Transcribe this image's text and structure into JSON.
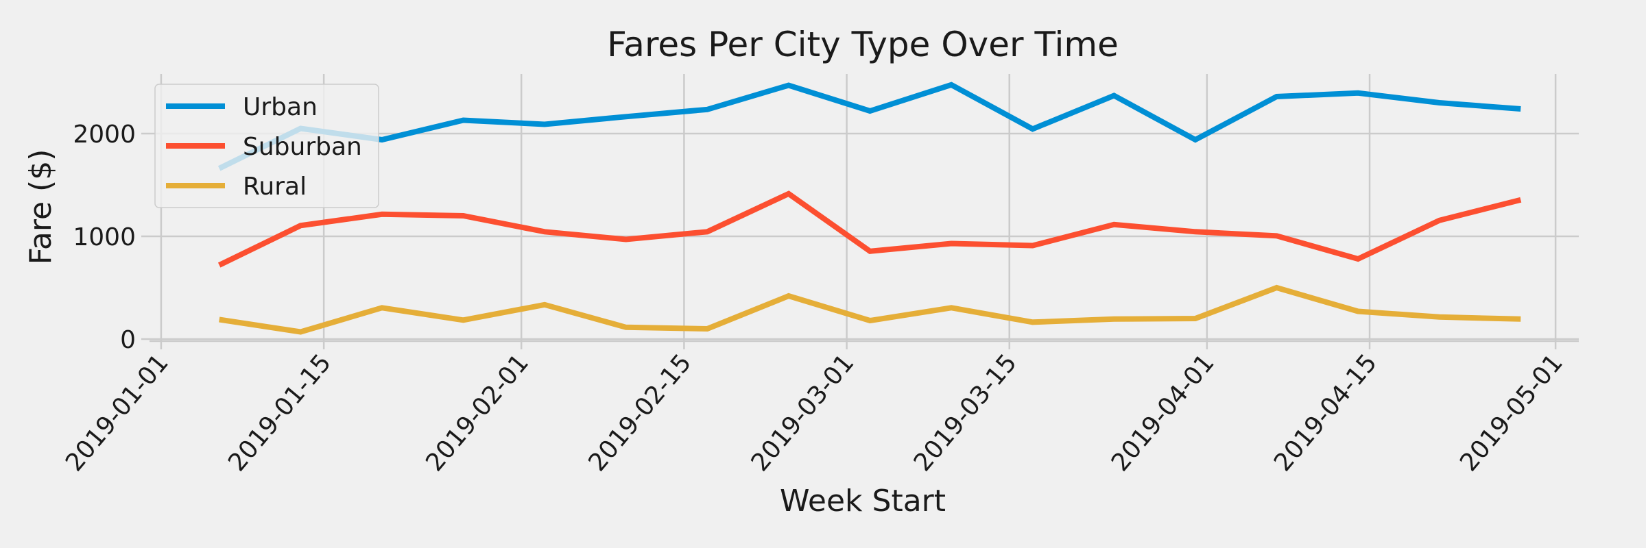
{
  "chart_data": {
    "type": "line",
    "title": "Fares Per City Type Over Time",
    "xlabel": "Week Start",
    "ylabel": "Fare ($)",
    "x_type": "date",
    "x": [
      "2019-01-06",
      "2019-01-13",
      "2019-01-20",
      "2019-01-27",
      "2019-02-03",
      "2019-02-10",
      "2019-02-17",
      "2019-02-24",
      "2019-03-03",
      "2019-03-10",
      "2019-03-17",
      "2019-03-24",
      "2019-03-31",
      "2019-04-07",
      "2019-04-14",
      "2019-04-21",
      "2019-04-28"
    ],
    "xlim": [
      "2018-12-31",
      "2019-05-03"
    ],
    "xticks": [
      "2019-01-01",
      "2019-01-15",
      "2019-02-01",
      "2019-02-15",
      "2019-03-01",
      "2019-03-15",
      "2019-04-01",
      "2019-04-15",
      "2019-05-01"
    ],
    "ylim": [
      -20,
      2580
    ],
    "yticks": [
      0,
      1000,
      2000
    ],
    "grid": true,
    "legend_position": "top-left",
    "series": [
      {
        "name": "Urban",
        "color": "#008fd5",
        "values": [
          1661,
          2050,
          1940,
          2130,
          2090,
          2165,
          2235,
          2470,
          2220,
          2475,
          2045,
          2370,
          1940,
          2360,
          2395,
          2300,
          2240
        ]
      },
      {
        "name": "Suburban",
        "color": "#fc4f30",
        "values": [
          720,
          1105,
          1215,
          1200,
          1045,
          970,
          1045,
          1415,
          855,
          930,
          910,
          1115,
          1045,
          1005,
          780,
          1155,
          1355
        ]
      },
      {
        "name": "Rural",
        "color": "#e5ae38",
        "values": [
          190,
          70,
          305,
          185,
          335,
          115,
          100,
          420,
          180,
          305,
          165,
          195,
          200,
          500,
          270,
          215,
          195
        ]
      }
    ]
  }
}
